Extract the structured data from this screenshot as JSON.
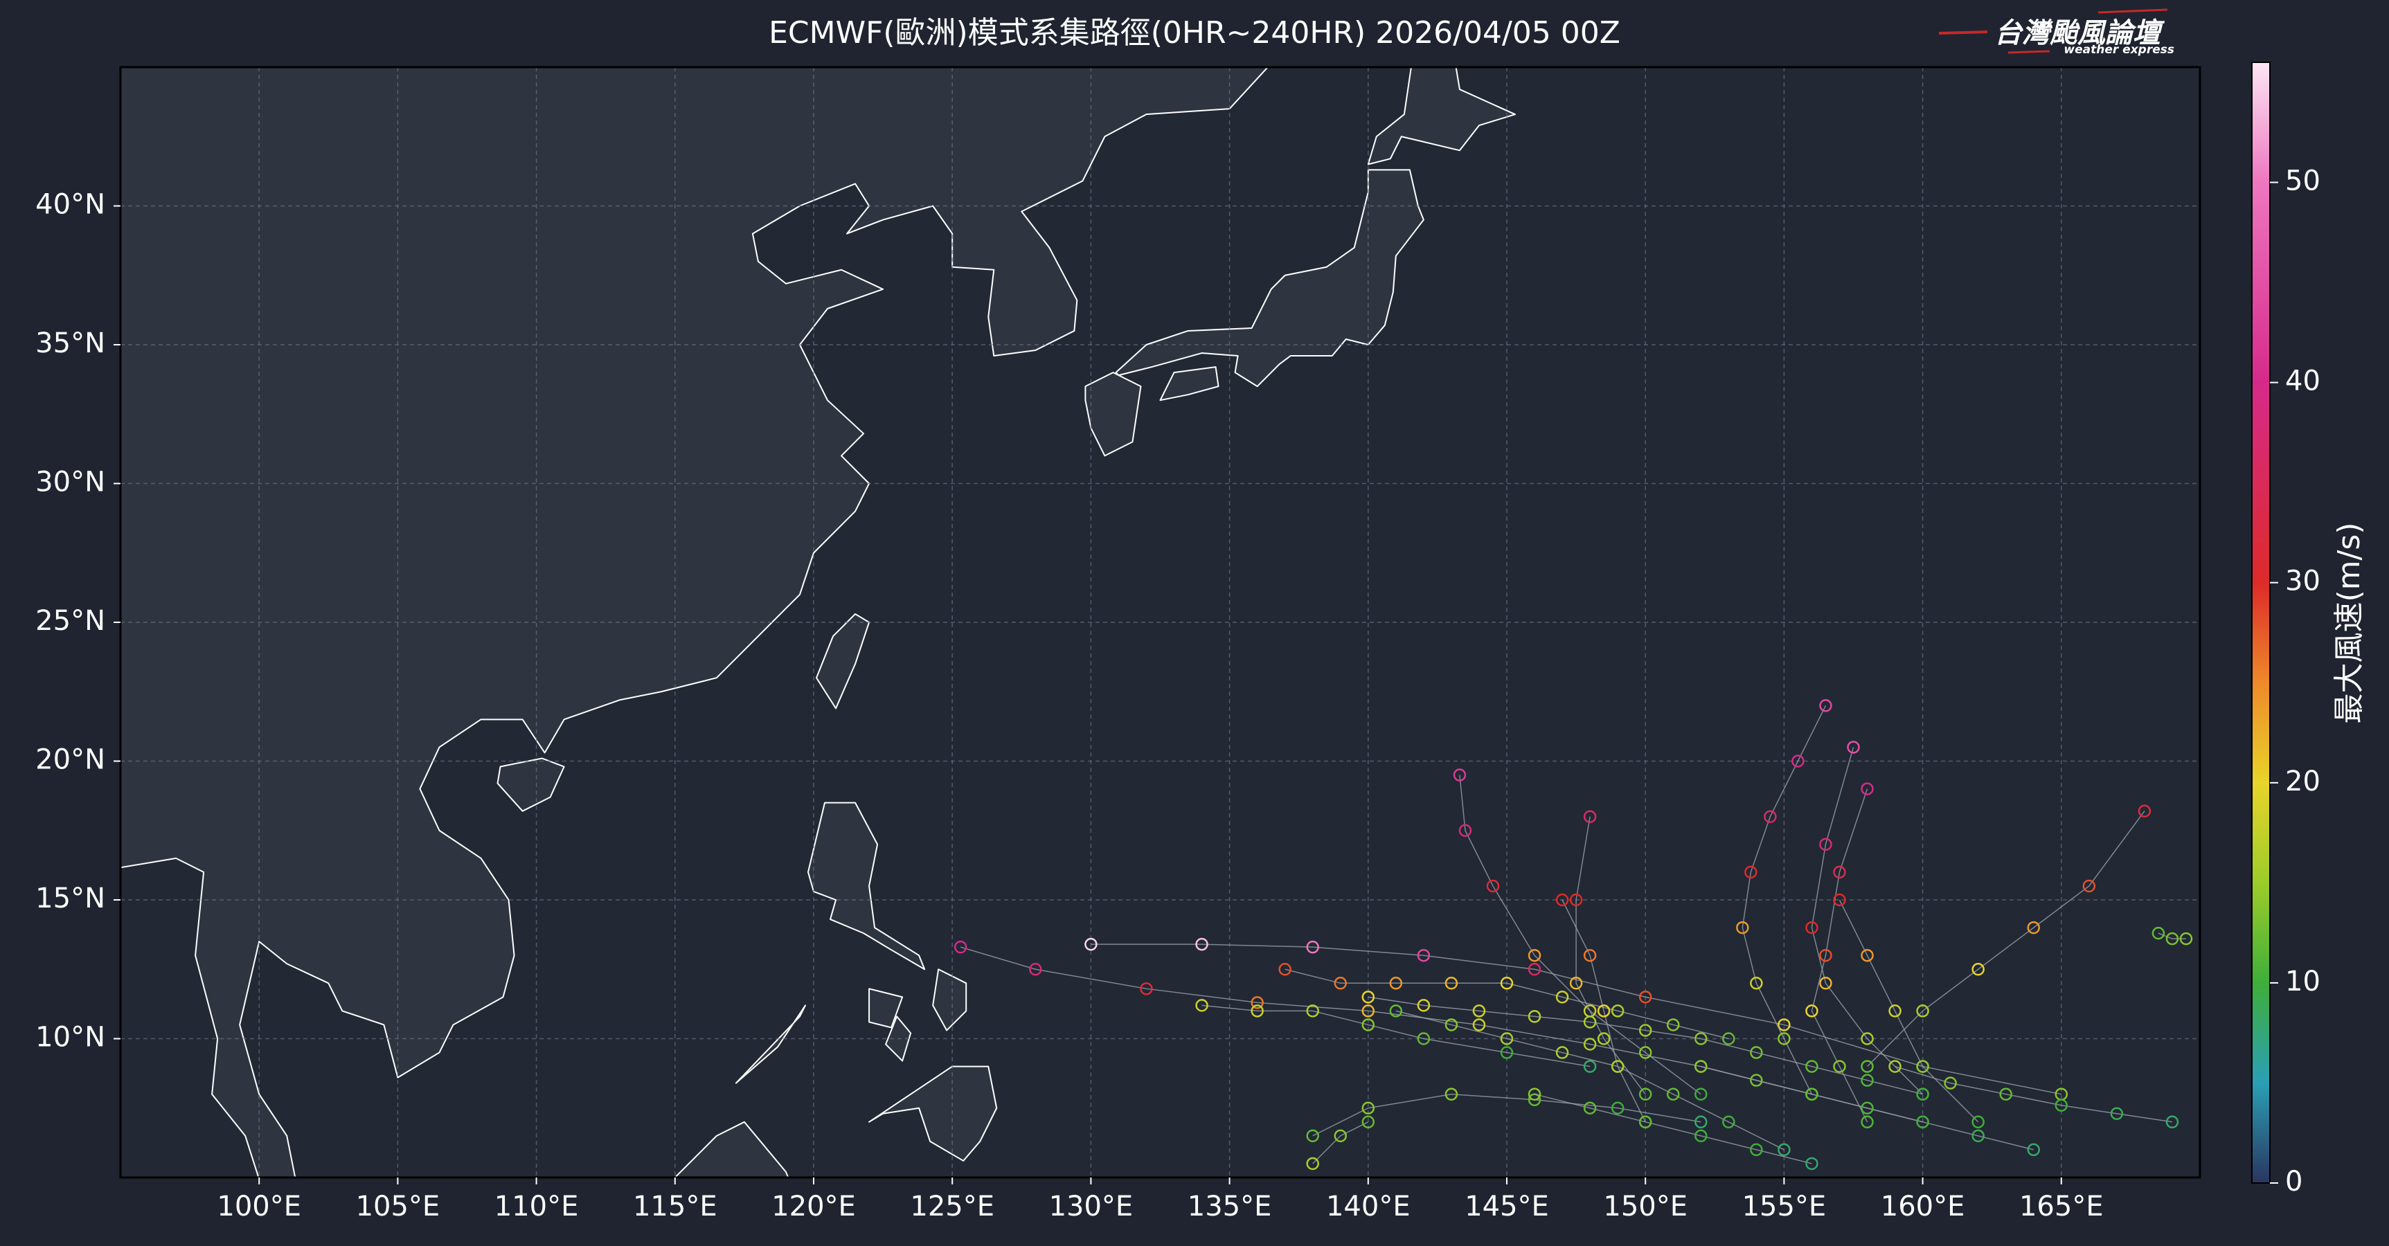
{
  "chart_data": {
    "type": "track-map",
    "title": "ECMWF(歐洲)模式系集路徑(0HR~240HR) 2026/04/05 00Z",
    "logo": {
      "name": "台灣颱風論壇",
      "tagline": "weather express"
    },
    "xlim": [
      95,
      170
    ],
    "ylim": [
      5,
      45
    ],
    "xticks": [
      {
        "value": 100,
        "label": "100°E"
      },
      {
        "value": 105,
        "label": "105°E"
      },
      {
        "value": 110,
        "label": "110°E"
      },
      {
        "value": 115,
        "label": "115°E"
      },
      {
        "value": 120,
        "label": "120°E"
      },
      {
        "value": 125,
        "label": "125°E"
      },
      {
        "value": 130,
        "label": "130°E"
      },
      {
        "value": 135,
        "label": "135°E"
      },
      {
        "value": 140,
        "label": "140°E"
      },
      {
        "value": 145,
        "label": "145°E"
      },
      {
        "value": 150,
        "label": "150°E"
      },
      {
        "value": 155,
        "label": "155°E"
      },
      {
        "value": 160,
        "label": "160°E"
      },
      {
        "value": 165,
        "label": "165°E"
      }
    ],
    "yticks": [
      {
        "value": 10,
        "label": "10°N"
      },
      {
        "value": 15,
        "label": "15°N"
      },
      {
        "value": 20,
        "label": "20°N"
      },
      {
        "value": 25,
        "label": "25°N"
      },
      {
        "value": 30,
        "label": "30°N"
      },
      {
        "value": 35,
        "label": "35°N"
      },
      {
        "value": 40,
        "label": "40°N"
      }
    ],
    "grid": true,
    "colorbar": {
      "label": "最大風速(m/s)",
      "clim": [
        0,
        56
      ],
      "ticks": [
        0,
        10,
        20,
        30,
        40,
        50
      ],
      "colormap": [
        {
          "value": 0,
          "color": "#2a3560"
        },
        {
          "value": 5,
          "color": "#2a9fb5"
        },
        {
          "value": 10,
          "color": "#3fae3a"
        },
        {
          "value": 15,
          "color": "#9ccc2a"
        },
        {
          "value": 20,
          "color": "#e8d42a"
        },
        {
          "value": 25,
          "color": "#ee8a2a"
        },
        {
          "value": 30,
          "color": "#dd2a2a"
        },
        {
          "value": 40,
          "color": "#d62a8a"
        },
        {
          "value": 50,
          "color": "#ee77c0"
        },
        {
          "value": 56,
          "color": "#fbe6f4"
        }
      ]
    },
    "tracks": [
      {
        "lon": [
          165,
          160,
          155,
          150,
          146,
          142,
          138,
          134,
          130
        ],
        "lat": [
          8,
          9,
          10.5,
          11.5,
          12.5,
          13,
          13.3,
          13.4,
          13.4
        ],
        "wind": [
          14,
          16,
          20,
          28,
          36,
          44,
          50,
          54,
          55
        ]
      },
      {
        "lon": [
          160,
          156,
          152,
          148,
          144,
          140,
          136,
          132,
          128,
          125.3
        ],
        "lat": [
          7,
          8,
          9,
          9.8,
          10.5,
          11,
          11.3,
          11.8,
          12.5,
          13.3
        ],
        "wind": [
          10,
          12,
          14,
          16,
          18,
          22,
          26,
          32,
          38,
          40
        ]
      },
      {
        "lon": [
          156,
          155,
          154,
          153.5,
          153.8,
          154.5,
          155.5,
          156.5
        ],
        "lat": [
          8,
          10,
          12,
          14,
          16,
          18,
          20,
          22
        ],
        "wind": [
          10,
          14,
          18,
          24,
          30,
          36,
          40,
          44
        ]
      },
      {
        "lon": [
          160,
          158,
          156.5,
          156,
          156.5,
          157.5
        ],
        "lat": [
          8,
          10,
          12,
          14,
          17,
          20.5
        ],
        "wind": [
          12,
          16,
          22,
          30,
          38,
          45
        ]
      },
      {
        "lon": [
          152,
          150,
          148,
          146,
          144.5,
          143.5,
          143.3
        ],
        "lat": [
          8,
          9.5,
          11,
          13,
          15.5,
          17.5,
          19.5
        ],
        "wind": [
          10,
          14,
          18,
          24,
          32,
          38,
          42
        ]
      },
      {
        "lon": [
          158,
          157,
          156,
          156.5,
          157,
          158
        ],
        "lat": [
          7,
          9,
          11,
          13,
          16,
          19
        ],
        "wind": [
          11,
          14,
          20,
          28,
          34,
          40
        ]
      },
      {
        "lon": [
          162,
          160,
          159,
          158,
          157
        ],
        "lat": [
          7,
          9,
          11,
          13,
          15
        ],
        "wind": [
          10,
          14,
          18,
          24,
          30
        ]
      },
      {
        "lon": [
          150,
          148.5,
          147.5,
          147.5,
          148
        ],
        "lat": [
          8,
          10,
          12,
          15,
          18
        ],
        "wind": [
          12,
          16,
          22,
          30,
          36
        ]
      },
      {
        "lon": [
          158,
          160,
          162,
          164,
          166,
          168
        ],
        "lat": [
          9,
          11,
          12.5,
          14,
          15.5,
          18.2
        ],
        "wind": [
          12,
          16,
          20,
          24,
          28,
          32
        ]
      },
      {
        "lon": [
          148,
          145,
          142,
          140,
          138,
          136,
          134
        ],
        "lat": [
          9,
          9.5,
          10,
          10.5,
          11,
          11,
          11.2
        ],
        "wind": [
          8,
          10,
          12,
          14,
          16,
          18,
          18
        ]
      },
      {
        "lon": [
          152,
          149,
          146,
          143,
          140,
          138
        ],
        "lat": [
          7,
          7.5,
          7.8,
          8,
          7.5,
          6.5
        ],
        "wind": [
          8,
          10,
          12,
          14,
          14,
          12
        ]
      },
      {
        "lon": [
          155,
          153,
          151,
          149,
          147,
          145,
          143,
          141
        ],
        "lat": [
          6,
          7,
          8,
          9,
          9.5,
          10,
          10.5,
          11
        ],
        "wind": [
          8,
          10,
          12,
          14,
          16,
          16,
          14,
          12
        ]
      },
      {
        "lon": [
          160,
          158,
          156,
          154,
          152,
          150,
          148,
          146,
          144,
          142,
          140
        ],
        "lat": [
          8,
          8.5,
          9,
          9.5,
          10,
          10.3,
          10.6,
          10.8,
          11,
          11.2,
          11.5
        ],
        "wind": [
          10,
          11,
          12,
          13,
          14,
          15,
          16,
          17,
          18,
          19,
          20
        ]
      },
      {
        "lon": [
          164,
          162,
          160,
          158,
          156,
          154,
          152
        ],
        "lat": [
          6,
          6.5,
          7,
          7.5,
          8,
          8.5,
          9
        ],
        "wind": [
          8,
          9,
          10,
          11,
          12,
          13,
          14
        ]
      },
      {
        "lon": [
          169,
          167,
          165,
          163,
          161,
          159
        ],
        "lat": [
          7,
          7.3,
          7.6,
          8,
          8.4,
          9
        ],
        "wind": [
          8,
          9,
          10,
          12,
          14,
          16
        ]
      },
      {
        "lon": [
          153,
          151,
          149,
          147,
          145,
          143,
          141,
          139,
          137
        ],
        "lat": [
          10,
          10.5,
          11,
          11.5,
          12,
          12,
          12,
          12,
          12.5
        ],
        "wind": [
          12,
          14,
          16,
          18,
          20,
          22,
          24,
          26,
          28
        ]
      },
      {
        "lon": [
          150,
          149,
          148.5,
          148,
          147
        ],
        "lat": [
          7,
          9,
          11,
          13,
          15
        ],
        "wind": [
          12,
          16,
          20,
          26,
          30
        ]
      },
      {
        "lon": [
          156,
          154,
          152,
          150,
          148,
          146
        ],
        "lat": [
          5.5,
          6,
          6.5,
          7,
          7.5,
          8
        ],
        "wind": [
          8,
          10,
          10,
          12,
          12,
          14
        ]
      },
      {
        "lon": [
          140,
          139,
          138
        ],
        "lat": [
          7,
          6.5,
          5.5
        ],
        "wind": [
          12,
          14,
          16
        ]
      },
      {
        "lon": [
          168.5,
          169,
          169.5
        ],
        "lat": [
          13.8,
          13.6,
          13.6
        ],
        "wind": [
          12,
          13,
          14
        ]
      }
    ]
  }
}
